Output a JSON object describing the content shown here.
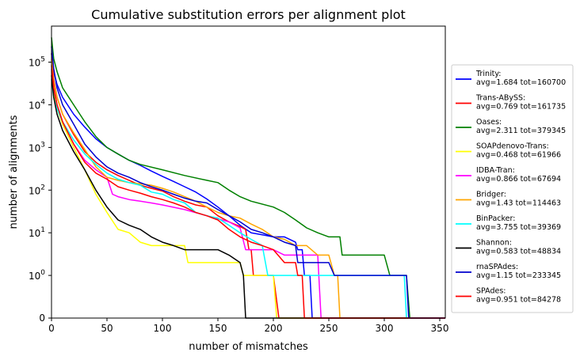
{
  "chart_data": {
    "type": "line",
    "title": "Cumulative substitution errors per alignment plot",
    "xlabel": "number of mismatches",
    "ylabel": "number of alignments",
    "xlim": [
      0,
      355
    ],
    "yscale": "symlog",
    "ylim_top": 700000,
    "xticks": [
      0,
      50,
      100,
      150,
      200,
      250,
      300,
      350
    ],
    "yticks": [
      {
        "value": 0,
        "label": "0"
      },
      {
        "value": 1,
        "label": "10",
        "exp": "0"
      },
      {
        "value": 10,
        "label": "10",
        "exp": "1"
      },
      {
        "value": 100,
        "label": "10",
        "exp": "2"
      },
      {
        "value": 1000,
        "label": "10",
        "exp": "3"
      },
      {
        "value": 10000,
        "label": "10",
        "exp": "4"
      },
      {
        "value": 100000,
        "label": "10",
        "exp": "5"
      }
    ],
    "grid": false,
    "legend_position": "right-outside",
    "series": [
      {
        "name": "Trinity:",
        "stats": "avg=1.684 tot=160700",
        "color": "#0000ff",
        "points": [
          [
            0,
            160700
          ],
          [
            2,
            60000
          ],
          [
            5,
            30000
          ],
          [
            10,
            15000
          ],
          [
            20,
            6000
          ],
          [
            30,
            3000
          ],
          [
            40,
            1600
          ],
          [
            50,
            1000
          ],
          [
            60,
            700
          ],
          [
            70,
            500
          ],
          [
            80,
            380
          ],
          [
            90,
            280
          ],
          [
            100,
            210
          ],
          [
            110,
            160
          ],
          [
            120,
            120
          ],
          [
            130,
            90
          ],
          [
            140,
            62
          ],
          [
            150,
            40
          ],
          [
            160,
            25
          ],
          [
            170,
            15
          ],
          [
            180,
            10
          ],
          [
            190,
            9
          ],
          [
            200,
            8
          ],
          [
            210,
            8
          ],
          [
            220,
            6
          ],
          [
            222,
            4
          ],
          [
            226,
            4
          ],
          [
            228,
            1
          ],
          [
            233,
            1
          ],
          [
            235,
            0
          ],
          [
            355,
            0
          ]
        ]
      },
      {
        "name": "Trans-ABySS:",
        "stats": "avg=0.769 tot=161735",
        "color": "#ff0000",
        "points": [
          [
            0,
            161735
          ],
          [
            2,
            40000
          ],
          [
            5,
            15000
          ],
          [
            10,
            6000
          ],
          [
            20,
            2000
          ],
          [
            30,
            800
          ],
          [
            40,
            450
          ],
          [
            50,
            300
          ],
          [
            60,
            220
          ],
          [
            70,
            170
          ],
          [
            80,
            130
          ],
          [
            90,
            110
          ],
          [
            100,
            95
          ],
          [
            110,
            70
          ],
          [
            120,
            55
          ],
          [
            130,
            45
          ],
          [
            140,
            40
          ],
          [
            150,
            25
          ],
          [
            160,
            18
          ],
          [
            170,
            14
          ],
          [
            175,
            12
          ],
          [
            178,
            4
          ],
          [
            180,
            4
          ],
          [
            182,
            1
          ],
          [
            200,
            1
          ],
          [
            205,
            0
          ],
          [
            355,
            0
          ]
        ]
      },
      {
        "name": "Oases:",
        "stats": "avg=2.311 tot=379345",
        "color": "#008000",
        "points": [
          [
            0,
            379345
          ],
          [
            2,
            120000
          ],
          [
            5,
            60000
          ],
          [
            10,
            25000
          ],
          [
            20,
            10000
          ],
          [
            30,
            4000
          ],
          [
            40,
            1800
          ],
          [
            50,
            1000
          ],
          [
            60,
            700
          ],
          [
            70,
            500
          ],
          [
            80,
            400
          ],
          [
            100,
            300
          ],
          [
            120,
            220
          ],
          [
            140,
            170
          ],
          [
            150,
            150
          ],
          [
            160,
            100
          ],
          [
            170,
            70
          ],
          [
            180,
            55
          ],
          [
            200,
            40
          ],
          [
            210,
            30
          ],
          [
            220,
            20
          ],
          [
            230,
            13
          ],
          [
            240,
            10
          ],
          [
            250,
            8
          ],
          [
            260,
            8
          ],
          [
            262,
            3
          ],
          [
            300,
            3
          ],
          [
            305,
            1
          ],
          [
            320,
            1
          ],
          [
            323,
            0
          ],
          [
            355,
            0
          ]
        ]
      },
      {
        "name": "SOAPdenovo-Trans:",
        "stats": "avg=0.468 tot=61966",
        "color": "#ffff00",
        "points": [
          [
            0,
            61966
          ],
          [
            2,
            20000
          ],
          [
            5,
            8000
          ],
          [
            10,
            3500
          ],
          [
            20,
            1000
          ],
          [
            30,
            300
          ],
          [
            40,
            80
          ],
          [
            50,
            30
          ],
          [
            60,
            12
          ],
          [
            70,
            10
          ],
          [
            80,
            6
          ],
          [
            90,
            5
          ],
          [
            100,
            5
          ],
          [
            110,
            5
          ],
          [
            120,
            5
          ],
          [
            123,
            2
          ],
          [
            170,
            2
          ],
          [
            173,
            1
          ],
          [
            200,
            1
          ],
          [
            203,
            0
          ],
          [
            355,
            0
          ]
        ]
      },
      {
        "name": "IDBA-Tran:",
        "stats": "avg=0.866 tot=67694",
        "color": "#ff00ff",
        "points": [
          [
            0,
            67694
          ],
          [
            2,
            25000
          ],
          [
            5,
            10000
          ],
          [
            10,
            4000
          ],
          [
            20,
            1200
          ],
          [
            30,
            500
          ],
          [
            40,
            300
          ],
          [
            50,
            200
          ],
          [
            55,
            80
          ],
          [
            60,
            70
          ],
          [
            70,
            60
          ],
          [
            80,
            55
          ],
          [
            90,
            50
          ],
          [
            100,
            45
          ],
          [
            120,
            35
          ],
          [
            140,
            25
          ],
          [
            160,
            18
          ],
          [
            170,
            13
          ],
          [
            175,
            4
          ],
          [
            200,
            4
          ],
          [
            210,
            3
          ],
          [
            240,
            3
          ],
          [
            243,
            0
          ],
          [
            355,
            0
          ]
        ]
      },
      {
        "name": "Bridger:",
        "stats": "avg=1.43 tot=114463",
        "color": "#ffa500",
        "points": [
          [
            0,
            114463
          ],
          [
            2,
            35000
          ],
          [
            5,
            15000
          ],
          [
            10,
            6000
          ],
          [
            20,
            2200
          ],
          [
            30,
            900
          ],
          [
            40,
            350
          ],
          [
            50,
            200
          ],
          [
            60,
            170
          ],
          [
            70,
            150
          ],
          [
            80,
            140
          ],
          [
            90,
            130
          ],
          [
            100,
            110
          ],
          [
            110,
            90
          ],
          [
            120,
            70
          ],
          [
            130,
            55
          ],
          [
            140,
            40
          ],
          [
            150,
            30
          ],
          [
            160,
            25
          ],
          [
            170,
            22
          ],
          [
            180,
            16
          ],
          [
            190,
            12
          ],
          [
            200,
            8
          ],
          [
            210,
            7
          ],
          [
            220,
            5
          ],
          [
            230,
            5
          ],
          [
            240,
            3
          ],
          [
            250,
            3
          ],
          [
            255,
            1
          ],
          [
            258,
            1
          ],
          [
            260,
            0
          ],
          [
            355,
            0
          ]
        ]
      },
      {
        "name": "BinPacker:",
        "stats": "avg=3.755 tot=39369",
        "color": "#00ffff",
        "points": [
          [
            0,
            39369
          ],
          [
            2,
            15000
          ],
          [
            5,
            8000
          ],
          [
            10,
            4000
          ],
          [
            20,
            1500
          ],
          [
            30,
            700
          ],
          [
            40,
            400
          ],
          [
            50,
            250
          ],
          [
            60,
            180
          ],
          [
            70,
            150
          ],
          [
            80,
            130
          ],
          [
            90,
            90
          ],
          [
            100,
            80
          ],
          [
            110,
            60
          ],
          [
            120,
            50
          ],
          [
            130,
            30
          ],
          [
            140,
            25
          ],
          [
            150,
            22
          ],
          [
            160,
            15
          ],
          [
            170,
            10
          ],
          [
            180,
            7
          ],
          [
            190,
            5
          ],
          [
            195,
            1
          ],
          [
            318,
            1
          ],
          [
            320,
            0
          ],
          [
            355,
            0
          ]
        ]
      },
      {
        "name": "Shannon:",
        "stats": "avg=0.583 tot=48834",
        "color": "#000000",
        "points": [
          [
            0,
            48834
          ],
          [
            2,
            15000
          ],
          [
            5,
            6000
          ],
          [
            10,
            2500
          ],
          [
            20,
            800
          ],
          [
            30,
            300
          ],
          [
            40,
            100
          ],
          [
            50,
            40
          ],
          [
            60,
            20
          ],
          [
            70,
            15
          ],
          [
            80,
            12
          ],
          [
            90,
            8
          ],
          [
            100,
            6
          ],
          [
            110,
            5
          ],
          [
            120,
            4
          ],
          [
            130,
            4
          ],
          [
            140,
            4
          ],
          [
            150,
            4
          ],
          [
            160,
            3
          ],
          [
            170,
            2
          ],
          [
            173,
            1
          ],
          [
            175,
            0
          ],
          [
            355,
            0
          ]
        ]
      },
      {
        "name": "rnaSPAdes:",
        "stats": "avg=1.15 tot=233345",
        "color": "#0000cd",
        "points": [
          [
            0,
            233345
          ],
          [
            2,
            70000
          ],
          [
            5,
            25000
          ],
          [
            10,
            10000
          ],
          [
            20,
            3500
          ],
          [
            30,
            1200
          ],
          [
            40,
            600
          ],
          [
            50,
            350
          ],
          [
            60,
            250
          ],
          [
            70,
            200
          ],
          [
            80,
            150
          ],
          [
            90,
            120
          ],
          [
            100,
            100
          ],
          [
            110,
            80
          ],
          [
            120,
            65
          ],
          [
            130,
            55
          ],
          [
            140,
            50
          ],
          [
            150,
            35
          ],
          [
            160,
            25
          ],
          [
            170,
            18
          ],
          [
            180,
            12
          ],
          [
            190,
            10
          ],
          [
            200,
            8
          ],
          [
            210,
            6
          ],
          [
            220,
            5
          ],
          [
            222,
            2
          ],
          [
            250,
            2
          ],
          [
            255,
            1
          ],
          [
            320,
            1
          ],
          [
            322,
            0
          ],
          [
            355,
            0
          ]
        ]
      },
      {
        "name": "SPAdes:",
        "stats": "avg=0.951 tot=84278",
        "color": "#ff0000",
        "points": [
          [
            0,
            84278
          ],
          [
            2,
            25000
          ],
          [
            5,
            10000
          ],
          [
            10,
            4000
          ],
          [
            20,
            1200
          ],
          [
            30,
            450
          ],
          [
            40,
            250
          ],
          [
            50,
            180
          ],
          [
            60,
            120
          ],
          [
            70,
            100
          ],
          [
            80,
            85
          ],
          [
            90,
            70
          ],
          [
            100,
            60
          ],
          [
            110,
            50
          ],
          [
            120,
            40
          ],
          [
            130,
            30
          ],
          [
            140,
            25
          ],
          [
            150,
            20
          ],
          [
            160,
            12
          ],
          [
            170,
            8
          ],
          [
            180,
            6
          ],
          [
            190,
            5
          ],
          [
            200,
            4
          ],
          [
            210,
            2
          ],
          [
            220,
            2
          ],
          [
            222,
            1
          ],
          [
            226,
            1
          ],
          [
            228,
            0
          ],
          [
            355,
            0
          ]
        ]
      }
    ]
  }
}
